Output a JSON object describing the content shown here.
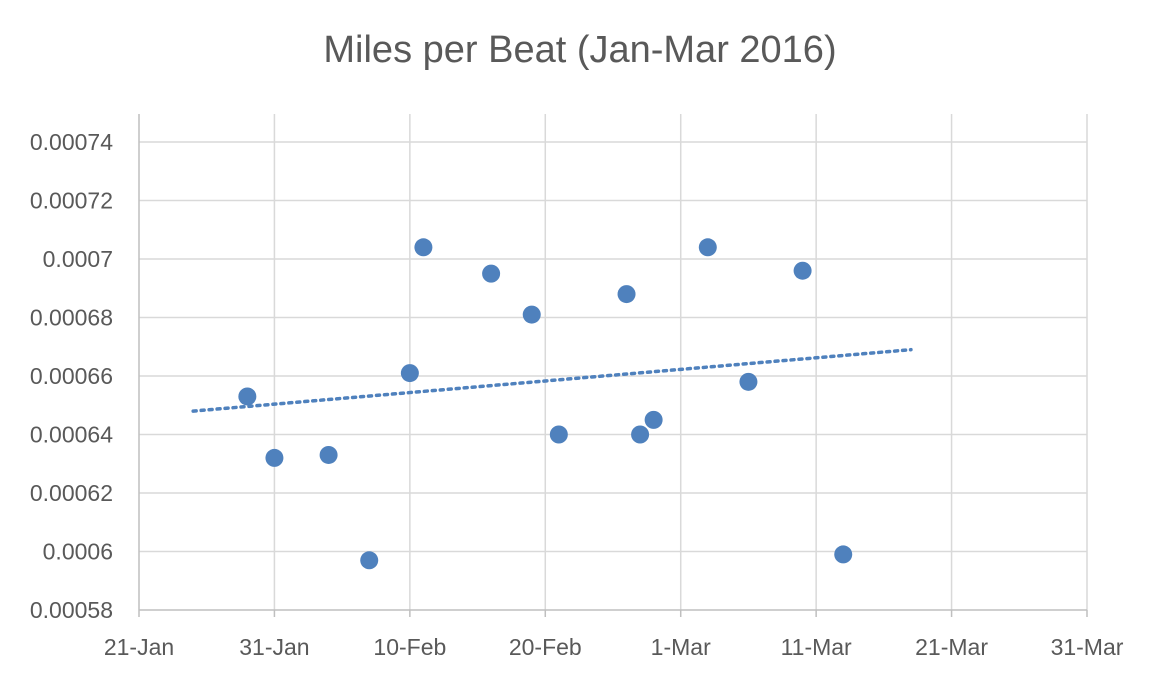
{
  "chart_data": {
    "type": "scatter",
    "title": "Miles per Beat (Jan-Mar 2016)",
    "xlabel": "",
    "ylabel": "",
    "grid": true,
    "legend": "none",
    "x_axis": {
      "min_day": 21,
      "max_day": 91,
      "tick_step_days": 10,
      "tick_labels": [
        "21-Jan",
        "31-Jan",
        "10-Feb",
        "20-Feb",
        "1-Mar",
        "11-Mar",
        "21-Mar",
        "31-Mar"
      ]
    },
    "y_axis": {
      "min": 0.00058,
      "max": 0.00074,
      "step": 2e-05,
      "tick_labels": [
        "0.00058",
        "0.0006",
        "0.00062",
        "0.00064",
        "0.00066",
        "0.00068",
        "0.0007",
        "0.00072",
        "0.00074"
      ]
    },
    "series": [
      {
        "name": "Miles per Beat",
        "marker": "circle",
        "color": "#4f81bd",
        "x_dates": [
          "29-Jan",
          "31-Jan",
          "4-Feb",
          "7-Feb",
          "10-Feb",
          "11-Feb",
          "16-Feb",
          "19-Feb",
          "21-Feb",
          "26-Feb",
          "27-Feb",
          "28-Feb",
          "3-Mar",
          "6-Mar",
          "10-Mar",
          "13-Mar"
        ],
        "x_day": [
          29,
          31,
          35,
          38,
          41,
          42,
          47,
          50,
          52,
          57,
          58,
          59,
          63,
          66,
          70,
          73
        ],
        "y": [
          0.000653,
          0.000632,
          0.000633,
          0.000597,
          0.000661,
          0.000704,
          0.000695,
          0.000681,
          0.00064,
          0.000688,
          0.00064,
          0.000645,
          0.000704,
          0.000658,
          0.000696,
          0.000599
        ]
      }
    ],
    "trendline": {
      "type": "linear",
      "style": "dotted",
      "color": "#4f81bd",
      "x_day": [
        25,
        78
      ],
      "y": [
        0.000648,
        0.000669
      ]
    }
  }
}
